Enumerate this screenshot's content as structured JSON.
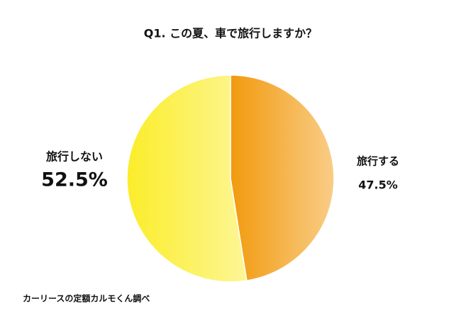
{
  "chart_data": {
    "type": "pie",
    "title": "Q1. この夏、車で旅行しますか？",
    "categories": [
      "旅行する",
      "旅行しない"
    ],
    "values": [
      47.5,
      52.5
    ],
    "value_labels": [
      "47.5%",
      "52.5%"
    ],
    "colors": [
      "#f29a0e",
      "#fbed2a"
    ],
    "source": "カーリースの定額カルモくん調べ"
  }
}
